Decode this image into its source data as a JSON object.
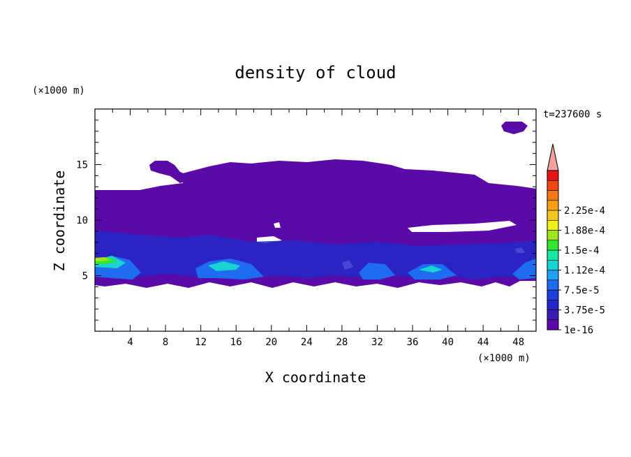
{
  "chart_data": {
    "type": "heatmap",
    "title": "density of cloud",
    "xlabel": "X coordinate",
    "ylabel": "Z coordinate",
    "x_unit": "(×1000 m)",
    "y_unit": "(×1000 m)",
    "time_label": "t=237600 s",
    "xlim": [
      0,
      50
    ],
    "ylim": [
      0,
      20
    ],
    "x_ticks": [
      4,
      8,
      12,
      16,
      20,
      24,
      28,
      32,
      36,
      40,
      44,
      48
    ],
    "y_ticks": [
      5,
      10,
      15
    ],
    "colorbar": {
      "levels": [
        "1e-16",
        "3.75e-5",
        "7.5e-5",
        "1.12e-4",
        "1.5e-4",
        "1.88e-4",
        "2.25e-4"
      ],
      "level_values": [
        1e-16,
        3.75e-05,
        7.5e-05,
        0.000112,
        0.00015,
        0.000188,
        0.000225
      ],
      "colors": [
        "#5a0aa8",
        "#3a1cb4",
        "#2428c8",
        "#1f3fdc",
        "#1e6cf0",
        "#1ea0f5",
        "#19d2d2",
        "#19e6a0",
        "#32e632",
        "#a0e619",
        "#f0f019",
        "#f5c81e",
        "#f5a014",
        "#f57814",
        "#f04614",
        "#e61414"
      ],
      "extend_color": "#f5a0a0"
    },
    "regions": [
      {
        "level": 0,
        "desc": "low-density cloud layer",
        "x_range": [
          0,
          50
        ],
        "z_range": [
          4.2,
          12.7
        ]
      },
      {
        "level": 0,
        "desc": "upper cloud patch",
        "x_range": [
          6.5,
          43
        ],
        "z_range": [
          12.7,
          15.2
        ]
      },
      {
        "level": 0,
        "desc": "isolated cloud",
        "x_range": [
          46.3,
          48.8
        ],
        "z_range": [
          17.8,
          18.6
        ]
      },
      {
        "level": 3,
        "desc": "mid-level cloud band",
        "x_range": [
          0,
          50
        ],
        "z_range": [
          5,
          9.5
        ]
      },
      {
        "level": 11,
        "desc": "dense core",
        "x_range": [
          0,
          3.2
        ],
        "z_range": [
          5.5,
          6.6
        ]
      }
    ]
  }
}
